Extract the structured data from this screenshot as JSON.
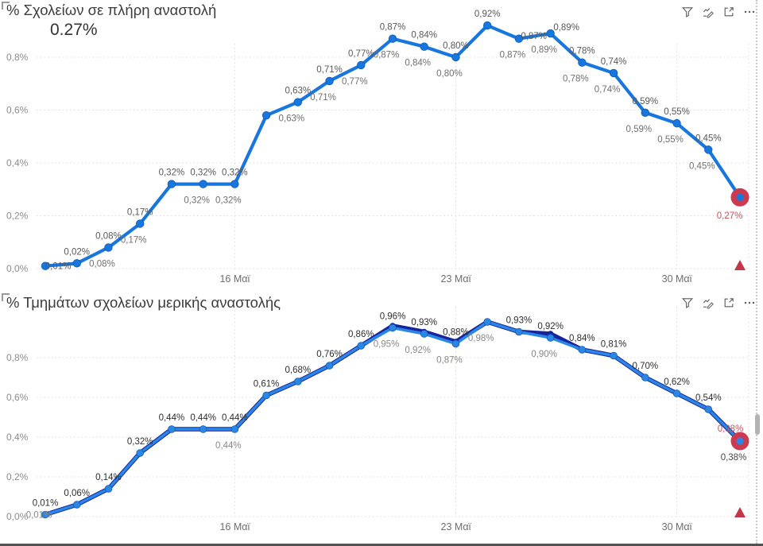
{
  "colors": {
    "line_blue": "#1877DE",
    "line_light_blue": "#2B86E6",
    "line_navy": "#17249B",
    "highlight_red": "#CC3A50",
    "triangle_red": "#C23648",
    "red_label": "#C2545E",
    "grid": "#DBDBDB"
  },
  "header_icons": [
    "filter-icon",
    "analyze-icon",
    "focus-mode-icon",
    "more-options-icon"
  ],
  "chart_data": [
    {
      "id": "top",
      "type": "line",
      "title": "% Σχολείων σε πλήρη αναστολή",
      "callout_value": "0.27%",
      "y_tick_labels": [
        "0,0%",
        "0,2%",
        "0,4%",
        "0,6%",
        "0,8%"
      ],
      "x_tick_labels": [
        "16 Μαϊ",
        "23 Μαϊ",
        "30 Μαϊ"
      ],
      "x_tick_indices": [
        6,
        13,
        20
      ],
      "ylabel": "",
      "grid": "dotted",
      "points": [
        {
          "v": 0.01,
          "above": "0,01%",
          "at": true
        },
        {
          "v": 0.02,
          "above": "0,02%"
        },
        {
          "v": 0.08,
          "above": "0,08%",
          "below": "0,08%"
        },
        {
          "v": 0.17,
          "above": "0,17%",
          "below": "0,17%"
        },
        {
          "v": 0.32,
          "above": "0,32%"
        },
        {
          "v": 0.32,
          "above": "0,32%",
          "below": "0,32%"
        },
        {
          "v": 0.32,
          "above": "0,32%",
          "below": "0,32%"
        },
        {
          "v": 0.58
        },
        {
          "v": 0.63,
          "above": "0,63%",
          "below": "0,63%"
        },
        {
          "v": 0.71,
          "above": "0,71%",
          "below": "0,71%"
        },
        {
          "v": 0.77,
          "above": "0,77%",
          "below": "0,77%"
        },
        {
          "v": 0.87,
          "above": "0,87%",
          "below": "0,87%"
        },
        {
          "v": 0.84,
          "above": "0,84%",
          "below": "0,84%"
        },
        {
          "v": 0.8,
          "above": "0,80%",
          "below": "0,80%"
        },
        {
          "v": 0.92,
          "above": "0,92%"
        },
        {
          "v": 0.87,
          "below": "0,87%"
        },
        {
          "v": 0.89,
          "above": "0,87%",
          "above2": "0,89%",
          "below": "0,89%"
        },
        {
          "v": 0.78,
          "above": "0,78%",
          "below": "0,78%"
        },
        {
          "v": 0.74,
          "above": "0,74%",
          "below": "0,74%"
        },
        {
          "v": 0.59,
          "above": "0,59%",
          "below": "0,59%"
        },
        {
          "v": 0.55,
          "above": "0,55%",
          "below": "0,55%"
        },
        {
          "v": 0.45,
          "above": "0,45%",
          "below": "0,45%"
        },
        {
          "v": 0.27,
          "red_below": "0,27%",
          "hl": true
        }
      ]
    },
    {
      "id": "bottom",
      "type": "line",
      "title": "% Τμημάτων σχολείων μερικής αναστολής",
      "callout_value": "",
      "y_tick_labels": [
        "0,0%",
        "0,2%",
        "0,4%",
        "0,6%",
        "0,8%"
      ],
      "x_tick_labels": [
        "16 Μαϊ",
        "23 Μαϊ",
        "30 Μαϊ"
      ],
      "x_tick_indices": [
        6,
        13,
        20
      ],
      "ylabel": "",
      "grid": "dotted",
      "points": [
        {
          "v": 0.01,
          "v2": 0.01,
          "above": "0,01%",
          "below": "0,01%",
          "at_b": true
        },
        {
          "v": 0.06,
          "above": "0,06%"
        },
        {
          "v": 0.14,
          "above": "0,14%"
        },
        {
          "v": 0.32,
          "above": "0,32%"
        },
        {
          "v": 0.44,
          "above": "0,44%"
        },
        {
          "v": 0.44,
          "above": "0,44%"
        },
        {
          "v": 0.44,
          "above": "0,44%",
          "below": "0,44%"
        },
        {
          "v": 0.61,
          "above": "0,61%"
        },
        {
          "v": 0.68,
          "above": "0,68%"
        },
        {
          "v": 0.76,
          "above": "0,76%"
        },
        {
          "v": 0.86,
          "above": "0,86%"
        },
        {
          "v": 0.95,
          "v2": 0.96,
          "above": "0,96%",
          "below": "0,95%"
        },
        {
          "v": 0.92,
          "v2": 0.93,
          "above": "0,93%",
          "below": "0,92%"
        },
        {
          "v": 0.87,
          "v2": 0.88,
          "above": "0,88%",
          "below": "0,87%"
        },
        {
          "v": 0.98,
          "v2": 0.98,
          "below": "0,98%"
        },
        {
          "v": 0.93,
          "v2": 0.93,
          "above": "0,93%"
        },
        {
          "v": 0.9,
          "v2": 0.92,
          "above": "0,92%",
          "below": "0,90%"
        },
        {
          "v": 0.84,
          "above": "0,84%"
        },
        {
          "v": 0.81,
          "above": "0,81%"
        },
        {
          "v": 0.7,
          "above": "0,70%"
        },
        {
          "v": 0.62,
          "above": "0,62%"
        },
        {
          "v": 0.54,
          "above": "0,54%"
        },
        {
          "v": 0.38,
          "v2": 0.38,
          "red_above": "0,38%",
          "below": "0,38%",
          "dark": true,
          "hl": true
        }
      ]
    }
  ]
}
